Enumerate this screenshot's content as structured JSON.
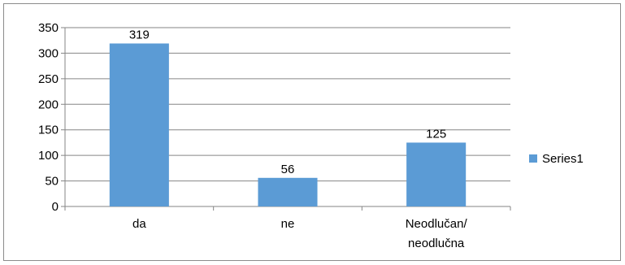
{
  "chart_data": {
    "type": "bar",
    "categories": [
      "da",
      "ne",
      "Neodlučan/ neodlučna"
    ],
    "category_lines": [
      [
        "da"
      ],
      [
        "ne"
      ],
      [
        "Neodlučan/",
        "neodlučna"
      ]
    ],
    "series": [
      {
        "name": "Series1",
        "values": [
          319,
          56,
          125
        ],
        "color": "#5b9bd5"
      }
    ],
    "data_labels": [
      "319",
      "56",
      "125"
    ],
    "ylim": [
      0,
      350
    ],
    "yticks": [
      0,
      50,
      100,
      150,
      200,
      250,
      300,
      350
    ],
    "grid": true,
    "legend": "right"
  }
}
